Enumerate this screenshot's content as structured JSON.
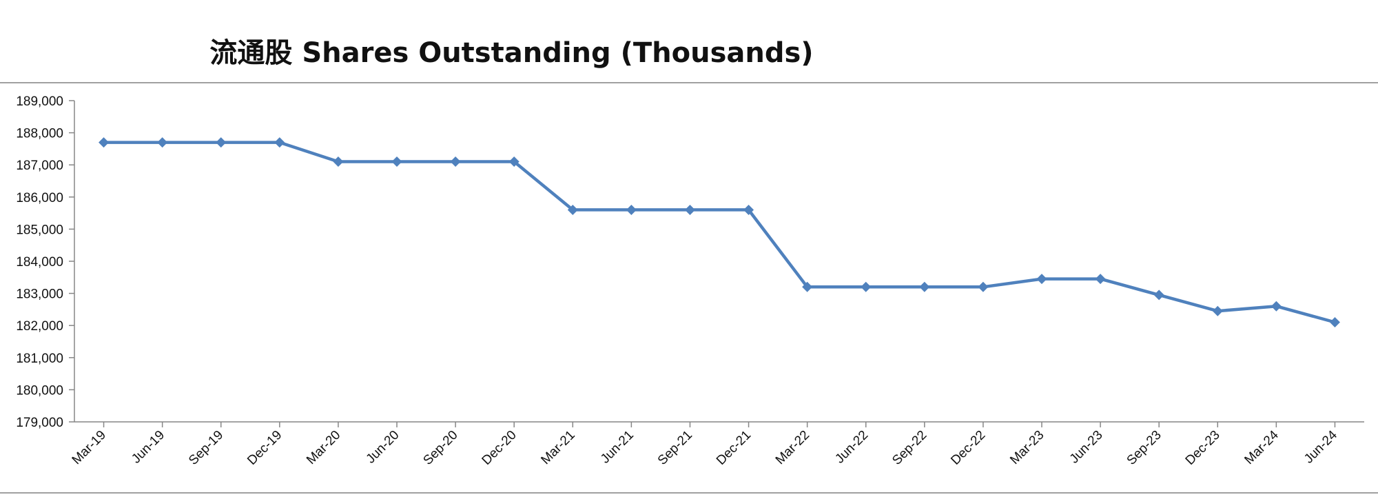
{
  "chart_data": {
    "type": "line",
    "title": "流通股 Shares Outstanding (Thousands)",
    "xlabel": "",
    "ylabel": "",
    "categories": [
      "Mar-19",
      "Jun-19",
      "Sep-19",
      "Dec-19",
      "Mar-20",
      "Jun-20",
      "Sep-20",
      "Dec-20",
      "Mar-21",
      "Jun-21",
      "Sep-21",
      "Dec-21",
      "Mar-22",
      "Jun-22",
      "Sep-22",
      "Dec-22",
      "Mar-23",
      "Jun-23",
      "Sep-23",
      "Dec-23",
      "Mar-24",
      "Jun-24"
    ],
    "series": [
      {
        "values": [
          187700,
          187700,
          187700,
          187700,
          187100,
          187100,
          187100,
          187100,
          185600,
          185600,
          185600,
          185600,
          183200,
          183200,
          183200,
          183200,
          183450,
          183450,
          182950,
          182450,
          182600,
          182100
        ]
      }
    ],
    "ylim": [
      179000,
      189000
    ],
    "y_ticks": [
      "179,000",
      "180,000",
      "181,000",
      "182,000",
      "183,000",
      "184,000",
      "185,000",
      "186,000",
      "187,000",
      "188,000",
      "189,000"
    ],
    "y_tick_values": [
      179000,
      180000,
      181000,
      182000,
      183000,
      184000,
      185000,
      186000,
      187000,
      188000,
      189000
    ],
    "grid": false,
    "legend": "none",
    "colors": {
      "line": "#4F81BD",
      "axis": "#868686",
      "frame": "#808080",
      "text": "#111111"
    },
    "marker": "diamond"
  }
}
